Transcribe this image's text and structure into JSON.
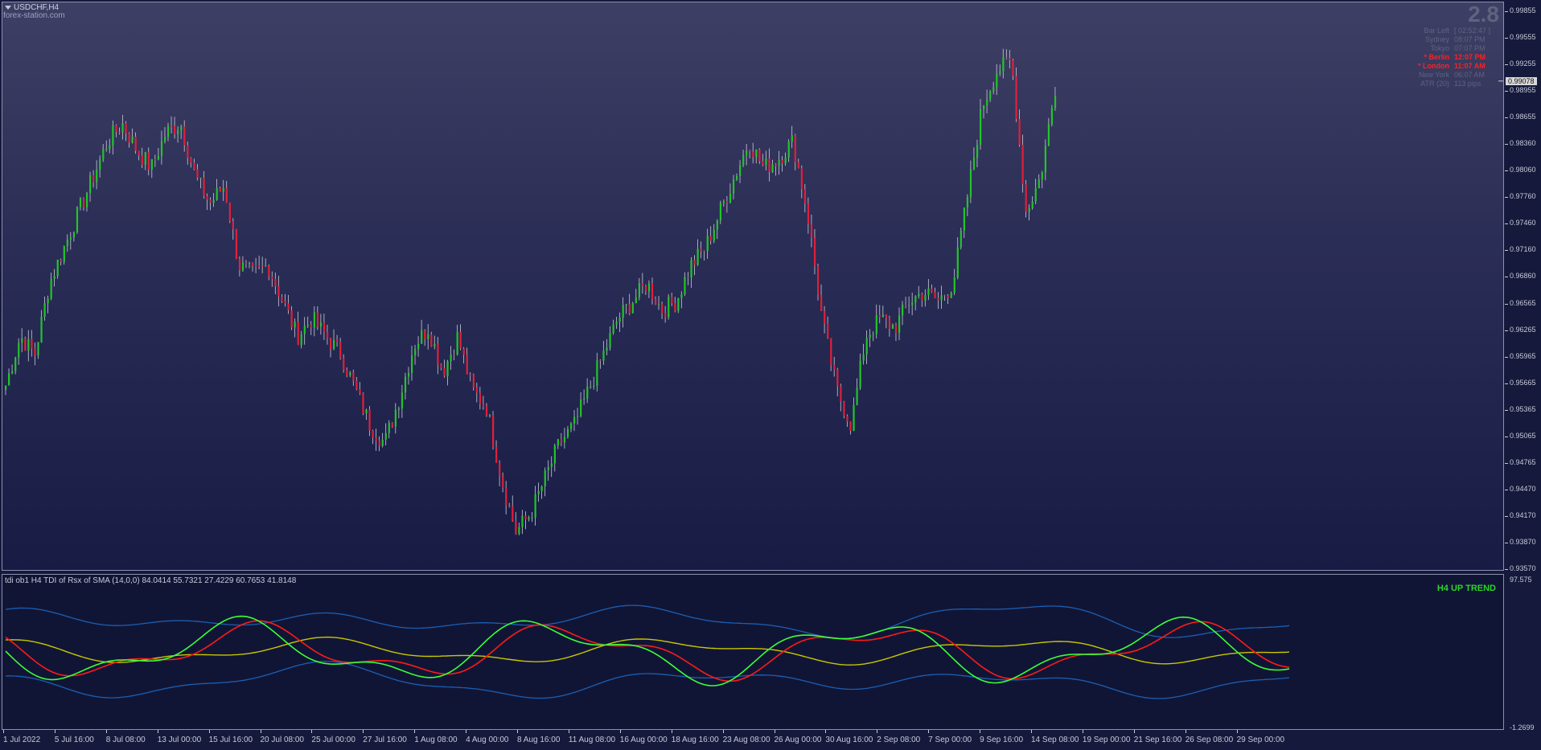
{
  "chart_window": {
    "symbol_timeframe": "USDCHF,H4",
    "watermark_site": "forex-station.com",
    "spread_display": "2.8",
    "current_price_label": "0.99078"
  },
  "info_panel": [
    {
      "label": "Bar Left",
      "value": "[ 02:52:47 ]",
      "highlight": false
    },
    {
      "label": "Sydney",
      "value": "08:07 PM",
      "highlight": false
    },
    {
      "label": "Tokyo",
      "value": "07:07 PM",
      "highlight": false
    },
    {
      "label": "* Berlin",
      "value": "12:07 PM",
      "highlight": true
    },
    {
      "label": "* London",
      "value": "11:07 AM",
      "highlight": true
    },
    {
      "label": "New York",
      "value": "06:07 AM",
      "highlight": false
    },
    {
      "label": "ATR (20)",
      "value": "113 pips",
      "highlight": false
    }
  ],
  "price_axis_labels": [
    "0.99855",
    "0.99555",
    "0.99255",
    "0.98955",
    "0.98655",
    "0.98360",
    "0.98060",
    "0.97760",
    "0.97460",
    "0.97160",
    "0.96860",
    "0.96565",
    "0.96265",
    "0.95965",
    "0.95665",
    "0.95365",
    "0.95065",
    "0.94765",
    "0.94470",
    "0.94170",
    "0.93870",
    "0.93570"
  ],
  "time_axis_labels": [
    "1 Jul 2022",
    "5 Jul 16:00",
    "8 Jul 08:00",
    "13 Jul 00:00",
    "15 Jul 16:00",
    "20 Jul 08:00",
    "25 Jul 00:00",
    "27 Jul 16:00",
    "1 Aug 08:00",
    "4 Aug 00:00",
    "8 Aug 16:00",
    "11 Aug 08:00",
    "16 Aug 00:00",
    "18 Aug 16:00",
    "23 Aug 08:00",
    "26 Aug 00:00",
    "30 Aug 16:00",
    "2 Sep 08:00",
    "7 Sep 00:00",
    "9 Sep 16:00",
    "14 Sep 08:00",
    "19 Sep 00:00",
    "21 Sep 16:00",
    "26 Sep 08:00",
    "29 Sep 00:00"
  ],
  "indicator": {
    "title": "tdi ob1 H4 TDI of Rsx of SMA (14,0,0) 84.0414 55.7321 27.4229 60.7653 41.8148",
    "trend_label": "H4 UP TREND",
    "axis_top": "97.575",
    "axis_bottom": "-1.2699"
  },
  "colors": {
    "bull_candle": "#22c42a",
    "bear_candle": "#e0203a",
    "tdi_price_line": "#3aff3a",
    "tdi_signal_line": "#ff1a1a",
    "tdi_base_line": "#c8c800",
    "tdi_bands": "#1a5fb4"
  },
  "chart_data": {
    "type": "line",
    "series": [
      {
        "name": "USDCHF,H4",
        "values": [
          0.9565,
          0.962,
          0.96,
          0.968,
          0.972,
          0.976,
          0.98,
          0.984,
          0.986,
          0.983,
          0.981,
          0.985,
          0.986,
          0.98,
          0.977,
          0.979,
          0.97,
          0.969,
          0.97,
          0.966,
          0.962,
          0.964,
          0.962,
          0.96,
          0.956,
          0.952,
          0.95,
          0.955,
          0.961,
          0.963,
          0.958,
          0.962,
          0.956,
          0.954,
          0.946,
          0.94,
          0.942,
          0.946,
          0.95,
          0.952,
          0.956,
          0.96,
          0.964,
          0.966,
          0.968,
          0.965,
          0.966,
          0.97,
          0.972,
          0.976,
          0.98,
          0.984,
          0.981,
          0.982,
          0.984,
          0.976,
          0.964,
          0.956,
          0.952,
          0.962,
          0.964,
          0.963,
          0.966,
          0.967,
          0.966,
          0.968,
          0.978,
          0.988,
          0.992,
          0.993,
          0.976,
          0.98,
          0.99
        ]
      }
    ],
    "ylim": [
      0.9357,
      0.99855
    ]
  }
}
